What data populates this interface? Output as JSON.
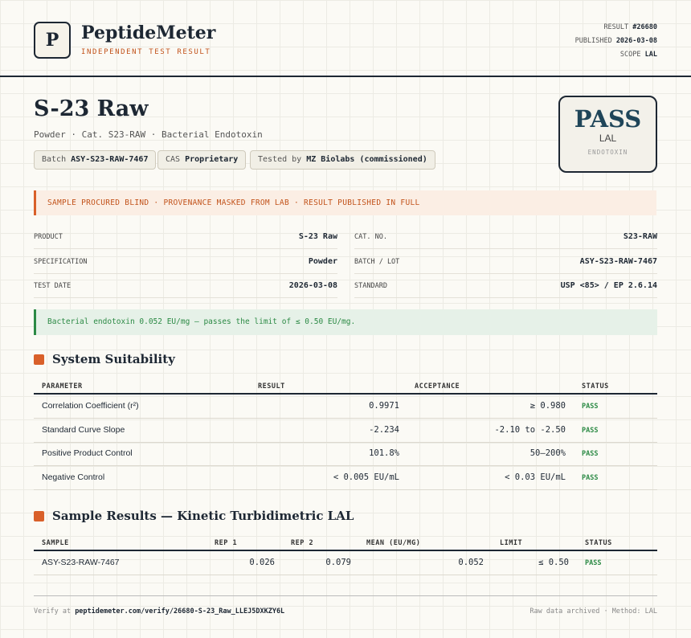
{
  "header": {
    "logo": "P",
    "brand": "PeptideMeter",
    "tagline": "INDEPENDENT TEST RESULT",
    "meta": [
      {
        "label": "RESULT",
        "value": "#26680"
      },
      {
        "label": "PUBLISHED",
        "value": "2026-03-08"
      },
      {
        "label": "SCOPE",
        "value": "LAL"
      }
    ]
  },
  "product": {
    "name": "S-23 Raw",
    "subtitle": "Powder · Cat. S23-RAW · Bacterial Endotoxin",
    "chips": [
      {
        "label": "Batch",
        "value": "ASY-S23-RAW-7467"
      },
      {
        "label": "CAS",
        "value": "Proprietary"
      },
      {
        "label": "Tested by",
        "value": "MZ Biolabs (commissioned)"
      }
    ]
  },
  "badge": {
    "verdict": "PASS",
    "assay": "LAL",
    "category": "ENDOTOXIN"
  },
  "notice": "SAMPLE PROCURED BLIND · PROVENANCE MASKED FROM LAB · RESULT PUBLISHED IN FULL",
  "details": [
    [
      {
        "label": "PRODUCT",
        "value": "S-23 Raw"
      },
      {
        "label": "CAT. NO.",
        "value": "S23-RAW"
      }
    ],
    [
      {
        "label": "SPECIFICATION",
        "value": "Powder"
      },
      {
        "label": "BATCH / LOT",
        "value": "ASY-S23-RAW-7467"
      }
    ],
    [
      {
        "label": "TEST DATE",
        "value": "2026-03-08"
      },
      {
        "label": "STANDARD",
        "value": "USP <85> / EP 2.6.14"
      }
    ]
  ],
  "summary": "Bacterial endotoxin 0.052 EU/mg — passes the limit of ≤ 0.50 EU/mg.",
  "suitability": {
    "title": "System Suitability",
    "columns": [
      "PARAMETER",
      "RESULT",
      "ACCEPTANCE",
      "STATUS"
    ],
    "rows": [
      [
        "Correlation Coefficient (r²)",
        "0.9971",
        "≥ 0.980",
        "PASS"
      ],
      [
        "Standard Curve Slope",
        "-2.234",
        "-2.10 to -2.50",
        "PASS"
      ],
      [
        "Positive Product Control",
        "101.8%",
        "50–200%",
        "PASS"
      ],
      [
        "Negative Control",
        "< 0.005 EU/mL",
        "< 0.03 EU/mL",
        "PASS"
      ]
    ]
  },
  "samples": {
    "title": "Sample Results — Kinetic Turbidimetric LAL",
    "columns": [
      "SAMPLE",
      "REP 1",
      "REP 2",
      "MEAN (EU/MG)",
      "LIMIT",
      "STATUS"
    ],
    "rows": [
      [
        "ASY-S23-RAW-7467",
        "0.026",
        "0.079",
        "0.052",
        "≤ 0.50",
        "PASS"
      ]
    ]
  },
  "footer": {
    "verify_label": "Verify at",
    "verify_url": "peptidemeter.com/verify/26680-S-23_Raw_LLEJ5DXKZY6L",
    "note": "Raw data archived · Method: LAL"
  }
}
